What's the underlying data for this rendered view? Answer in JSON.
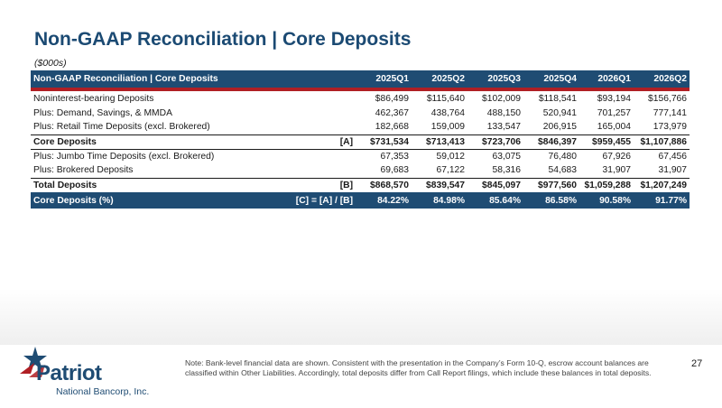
{
  "title": "Non-GAAP Reconciliation | Core Deposits",
  "units": "($000s)",
  "table": {
    "header": [
      "Non-GAAP Reconciliation | Core Deposits",
      "2025Q1",
      "2025Q2",
      "2025Q3",
      "2025Q4",
      "2026Q1",
      "2026Q2"
    ],
    "rows": [
      {
        "label": "Noninterest-bearing Deposits",
        "ref": "",
        "values": [
          "$86,499",
          "$115,640",
          "$102,009",
          "$118,541",
          "$93,194",
          "$156,766"
        ]
      },
      {
        "label": "Plus: Demand, Savings, & MMDA",
        "ref": "",
        "values": [
          "462,367",
          "438,764",
          "488,150",
          "520,941",
          "701,257",
          "777,141"
        ]
      },
      {
        "label": "Plus: Retail Time Deposits (excl. Brokered)",
        "ref": "",
        "values": [
          "182,668",
          "159,009",
          "133,547",
          "206,915",
          "165,004",
          "173,979"
        ]
      },
      {
        "label": "Core Deposits",
        "ref": "[A]",
        "values": [
          "$731,534",
          "$713,413",
          "$723,706",
          "$846,397",
          "$959,455",
          "$1,107,886"
        ]
      },
      {
        "label": "Plus: Jumbo Time Deposits (excl. Brokered)",
        "ref": "",
        "values": [
          "67,353",
          "59,012",
          "63,075",
          "76,480",
          "67,926",
          "67,456"
        ]
      },
      {
        "label": "Plus: Brokered Deposits",
        "ref": "",
        "values": [
          "69,683",
          "67,122",
          "58,316",
          "54,683",
          "31,907",
          "31,907"
        ]
      },
      {
        "label": "Total Deposits",
        "ref": "[B]",
        "values": [
          "$868,570",
          "$839,547",
          "$845,097",
          "$977,560",
          "$1,059,288",
          "$1,207,249"
        ]
      },
      {
        "label": "Core Deposits (%)",
        "ref": "[C] = [A] / [B]",
        "values": [
          "84.22%",
          "84.98%",
          "85.64%",
          "86.58%",
          "90.58%",
          "91.77%"
        ]
      }
    ]
  },
  "logo": {
    "name": "Patriot",
    "subtitle": "National Bancorp, Inc."
  },
  "note": "Note: Bank-level financial data are shown. Consistent with the presentation in the Company’s Form 10-Q, escrow account balances are classified within Other Liabilities. Accordingly, total deposits differ from Call Report filings, which include these balances in total deposits.",
  "page_number": "27",
  "colors": {
    "navy": "#1f4c73",
    "title": "#1b4a73",
    "red": "#b01f24"
  }
}
